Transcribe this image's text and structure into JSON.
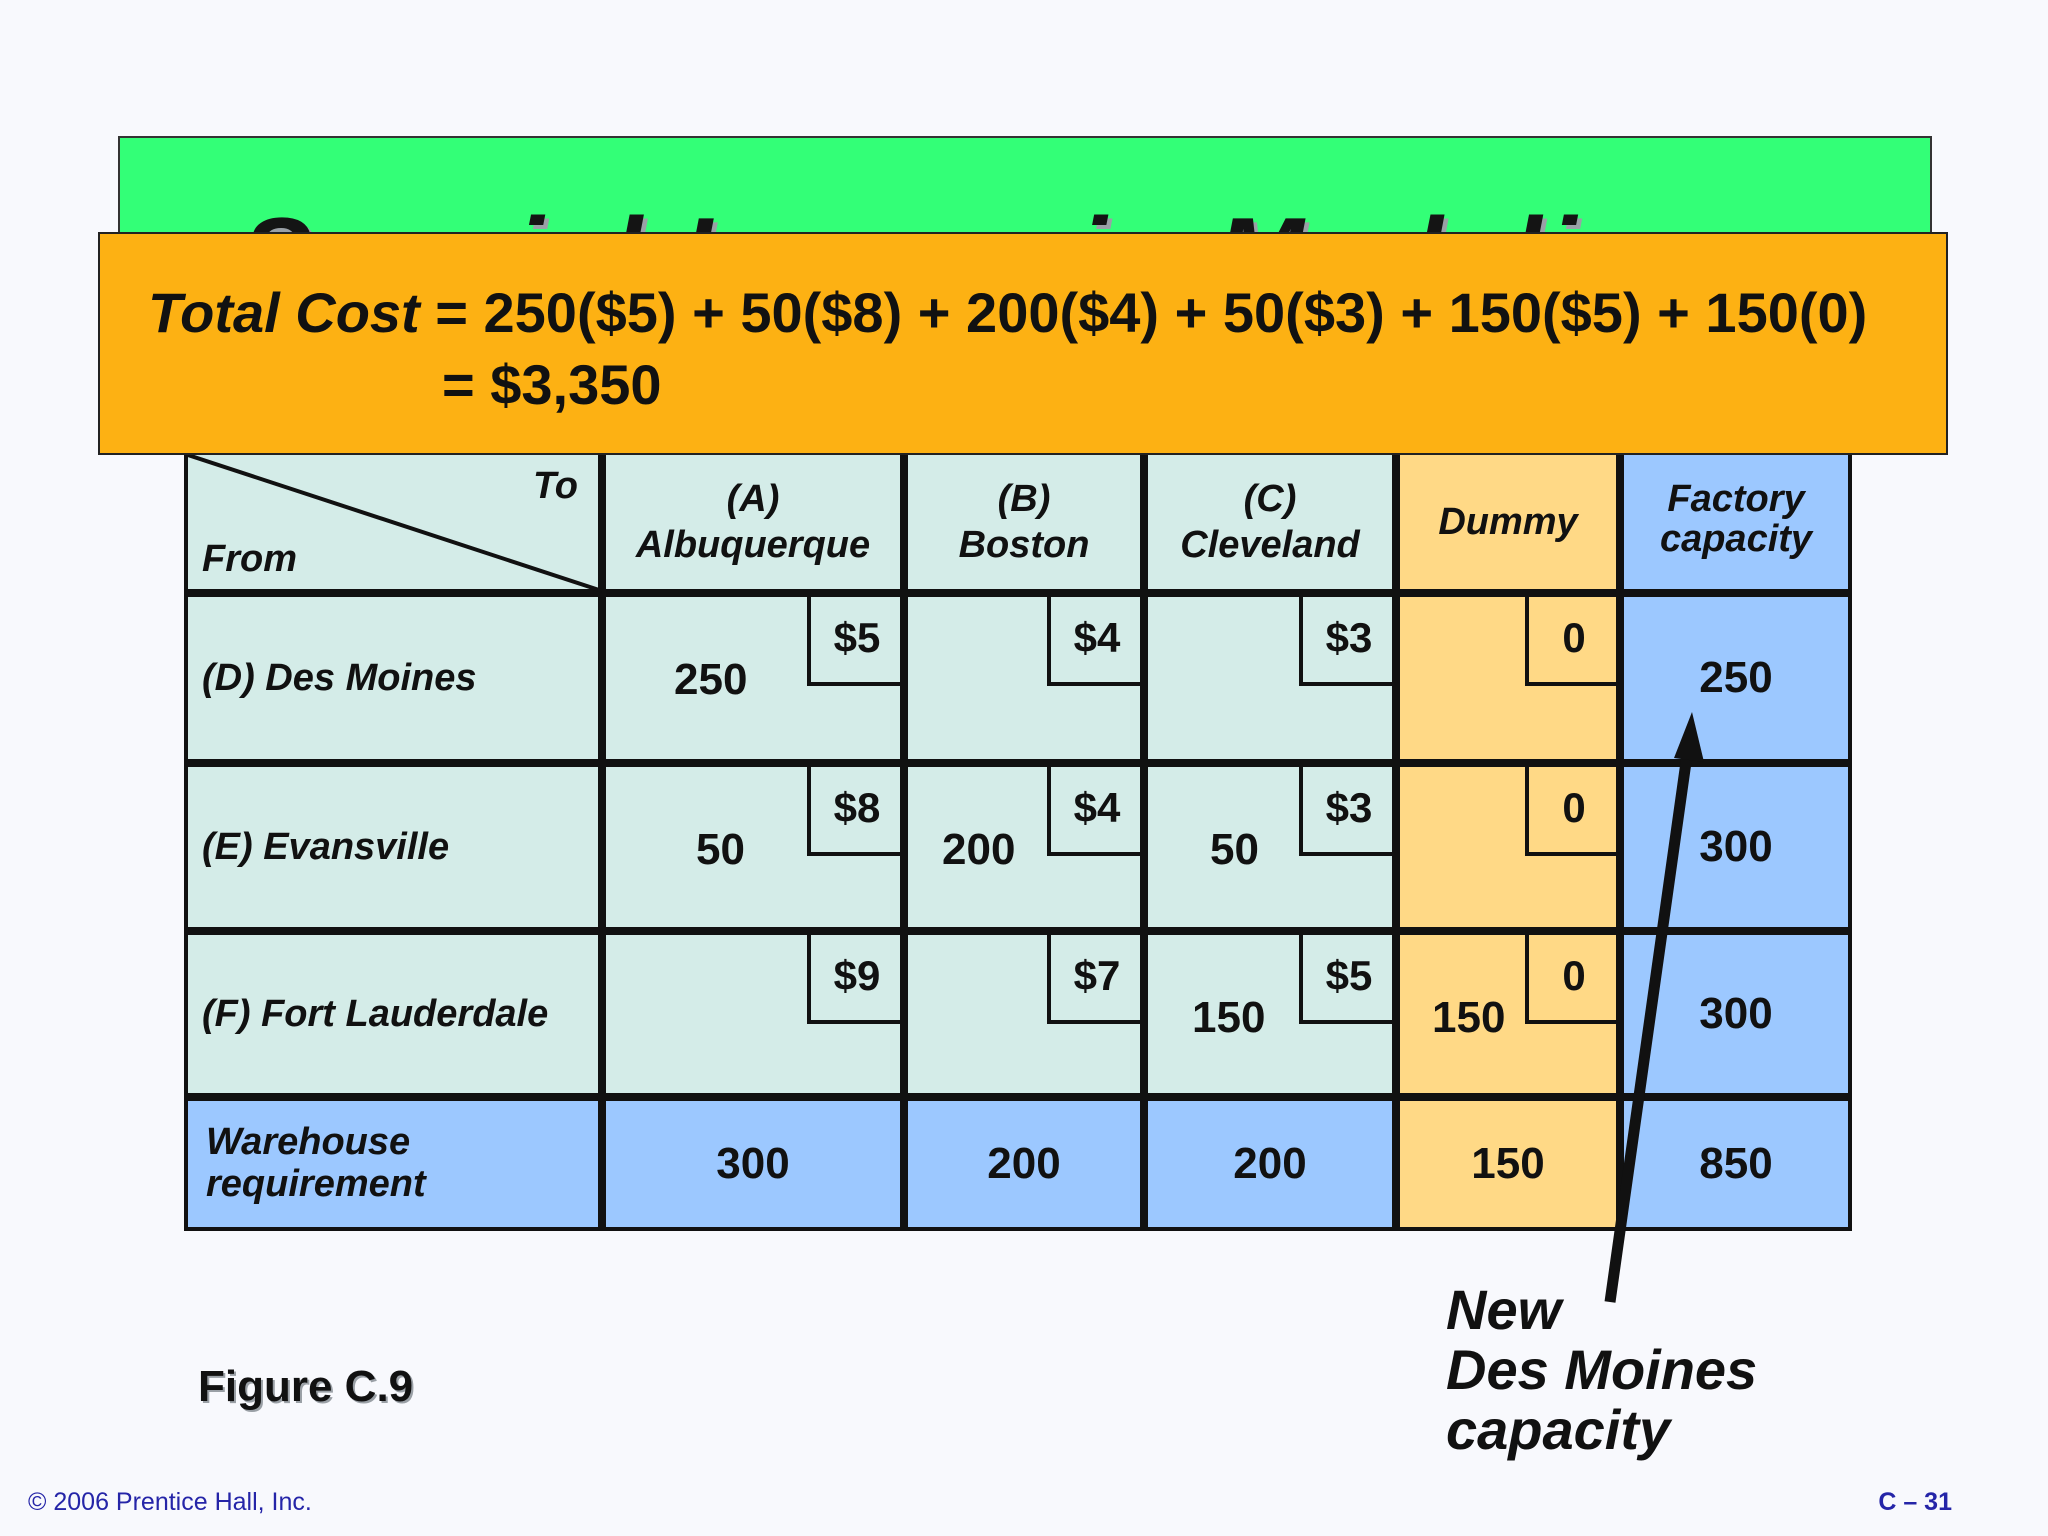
{
  "slide": {
    "title": "Special Issues in Modeling",
    "formula": {
      "label": "Total Cost",
      "line1": " = 250($5) + 50($8) + 200($4) + 50($3) + 150($5) + 150(0)",
      "line2": "= $3,350"
    },
    "figure_label": "Figure C.9",
    "callout": [
      "New",
      "Des Moines",
      "capacity"
    ],
    "copyright": "© 2006 Prentice Hall, Inc.",
    "page_number": "C – 31"
  },
  "table": {
    "corner": {
      "to": "To",
      "from": "From"
    },
    "columns": [
      {
        "line1": "(A)",
        "line2": "Albuquerque"
      },
      {
        "line1": "(B)",
        "line2": "Boston"
      },
      {
        "line1": "(C)",
        "line2": "Cleveland"
      },
      {
        "line1": "Dummy",
        "line2": ""
      },
      {
        "line1": "Factory",
        "line2": "capacity"
      }
    ],
    "rows": [
      {
        "name": "(D) Des Moines",
        "cells": [
          {
            "cost": "$5",
            "ship": "250"
          },
          {
            "cost": "$4",
            "ship": ""
          },
          {
            "cost": "$3",
            "ship": ""
          },
          {
            "cost": "0",
            "ship": ""
          }
        ],
        "capacity": "250"
      },
      {
        "name": "(E) Evansville",
        "cells": [
          {
            "cost": "$8",
            "ship": "50"
          },
          {
            "cost": "$4",
            "ship": "200"
          },
          {
            "cost": "$3",
            "ship": "50"
          },
          {
            "cost": "0",
            "ship": ""
          }
        ],
        "capacity": "300"
      },
      {
        "name": "(F) Fort Lauderdale",
        "cells": [
          {
            "cost": "$9",
            "ship": ""
          },
          {
            "cost": "$7",
            "ship": ""
          },
          {
            "cost": "$5",
            "ship": "150"
          },
          {
            "cost": "0",
            "ship": "150"
          }
        ],
        "capacity": "300"
      }
    ],
    "requirement": {
      "label_line1": "Warehouse",
      "label_line2": "requirement",
      "values": [
        "300",
        "200",
        "200",
        "150"
      ],
      "total": "850"
    }
  }
}
